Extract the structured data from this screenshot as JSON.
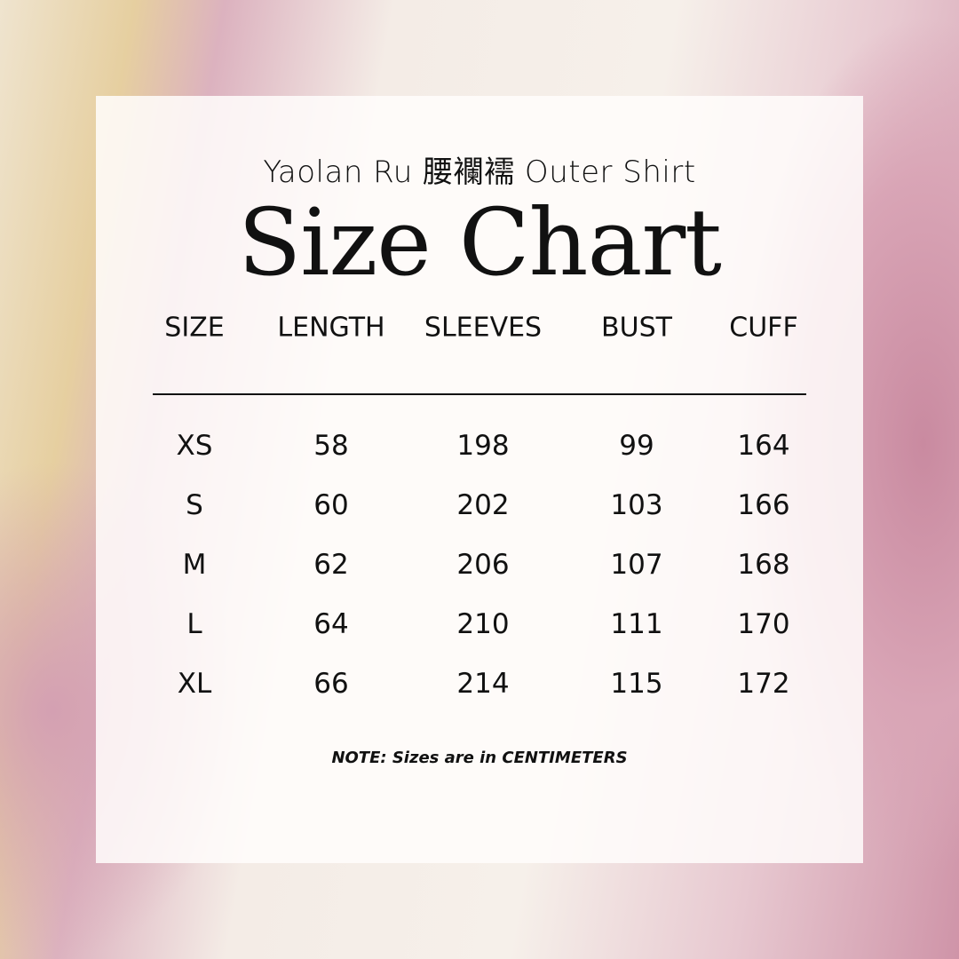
{
  "subtitle": "Yaolan Ru 腰襴襦 Outer Shirt",
  "title": "Size Chart",
  "table": {
    "headers": [
      "SIZE",
      "LENGTH",
      "SLEEVES",
      "BUST",
      "CUFF"
    ],
    "rows": [
      [
        "XS",
        "58",
        "198",
        "99",
        "164"
      ],
      [
        "S",
        "60",
        "202",
        "103",
        "166"
      ],
      [
        "M",
        "62",
        "206",
        "107",
        "168"
      ],
      [
        "L",
        "64",
        "210",
        "111",
        "170"
      ],
      [
        "XL",
        "66",
        "214",
        "115",
        "172"
      ]
    ]
  },
  "note": "NOTE: Sizes are in CENTIMETERS"
}
